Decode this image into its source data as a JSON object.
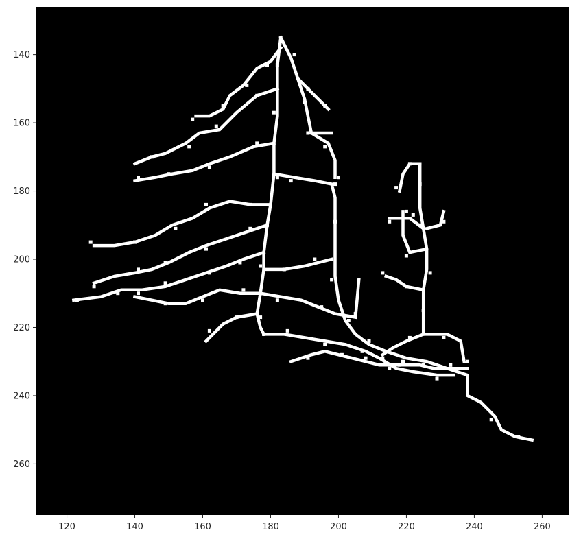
{
  "image": {
    "type": "skeleton-mask",
    "background_color": "#000000",
    "foreground_color": "#ffffff",
    "x_range": [
      111,
      268
    ],
    "y_range": [
      126,
      275
    ],
    "y_inverted": true
  },
  "x_axis": {
    "ticks": [
      {
        "value": 120,
        "label": "120"
      },
      {
        "value": 140,
        "label": "140"
      },
      {
        "value": 160,
        "label": "160"
      },
      {
        "value": 180,
        "label": "180"
      },
      {
        "value": 200,
        "label": "200"
      },
      {
        "value": 220,
        "label": "220"
      },
      {
        "value": 240,
        "label": "240"
      },
      {
        "value": 260,
        "label": "260"
      }
    ]
  },
  "y_axis": {
    "ticks": [
      {
        "value": 140,
        "label": "140"
      },
      {
        "value": 160,
        "label": "160"
      },
      {
        "value": 180,
        "label": "180"
      },
      {
        "value": 200,
        "label": "200"
      },
      {
        "value": 220,
        "label": "220"
      },
      {
        "value": 240,
        "label": "240"
      },
      {
        "value": 260,
        "label": "260"
      }
    ]
  },
  "skeleton_paths": [
    [
      [
        183,
        135
      ],
      [
        182,
        143
      ],
      [
        182,
        150
      ],
      [
        182,
        158
      ],
      [
        181,
        166
      ],
      [
        181,
        175
      ],
      [
        180,
        184
      ],
      [
        179,
        190
      ],
      [
        178,
        198
      ],
      [
        178,
        203
      ],
      [
        177,
        210
      ],
      [
        176,
        216
      ],
      [
        177,
        220
      ],
      [
        178,
        222
      ]
    ],
    [
      [
        183,
        135
      ],
      [
        186,
        141
      ],
      [
        188,
        147
      ],
      [
        190,
        153
      ],
      [
        191,
        158
      ],
      [
        192,
        163
      ],
      [
        198,
        163
      ]
    ],
    [
      [
        183,
        138
      ],
      [
        180,
        142
      ],
      [
        176,
        144
      ],
      [
        172,
        149
      ],
      [
        168,
        152
      ],
      [
        166,
        156
      ],
      [
        162,
        158
      ],
      [
        158,
        158
      ]
    ],
    [
      [
        182,
        150
      ],
      [
        176,
        152
      ],
      [
        170,
        157
      ],
      [
        165,
        162
      ],
      [
        159,
        163
      ],
      [
        155,
        166
      ],
      [
        149,
        169
      ],
      [
        145,
        170
      ],
      [
        140,
        172
      ]
    ],
    [
      [
        181,
        166
      ],
      [
        175,
        167
      ],
      [
        168,
        170
      ],
      [
        162,
        172
      ],
      [
        157,
        174
      ],
      [
        151,
        175
      ],
      [
        146,
        176
      ],
      [
        140,
        177
      ]
    ],
    [
      [
        181,
        175
      ],
      [
        187,
        176
      ],
      [
        193,
        177
      ],
      [
        198,
        178
      ],
      [
        199,
        182
      ],
      [
        199,
        190
      ],
      [
        199,
        198
      ],
      [
        199,
        205
      ],
      [
        200,
        212
      ],
      [
        202,
        218
      ],
      [
        205,
        222
      ],
      [
        209,
        225
      ],
      [
        214,
        227
      ],
      [
        220,
        229
      ],
      [
        226,
        230
      ],
      [
        232,
        232
      ],
      [
        238,
        234
      ],
      [
        238,
        240
      ],
      [
        242,
        242
      ],
      [
        246,
        246
      ],
      [
        248,
        250
      ],
      [
        252,
        252
      ],
      [
        257,
        253
      ]
    ],
    [
      [
        180,
        184
      ],
      [
        174,
        184
      ],
      [
        168,
        183
      ],
      [
        162,
        185
      ],
      [
        157,
        188
      ],
      [
        151,
        190
      ],
      [
        146,
        193
      ],
      [
        140,
        195
      ],
      [
        134,
        196
      ],
      [
        128,
        196
      ]
    ],
    [
      [
        179,
        190
      ],
      [
        173,
        192
      ],
      [
        167,
        194
      ],
      [
        161,
        196
      ],
      [
        156,
        198
      ],
      [
        150,
        201
      ],
      [
        145,
        203
      ],
      [
        140,
        204
      ],
      [
        134,
        205
      ],
      [
        128,
        207
      ]
    ],
    [
      [
        178,
        198
      ],
      [
        172,
        200
      ],
      [
        167,
        202
      ],
      [
        161,
        204
      ],
      [
        155,
        206
      ],
      [
        149,
        208
      ],
      [
        142,
        209
      ],
      [
        136,
        209
      ],
      [
        130,
        211
      ],
      [
        122,
        212
      ]
    ],
    [
      [
        178,
        203
      ],
      [
        184,
        203
      ],
      [
        190,
        202
      ],
      [
        194,
        201
      ],
      [
        198,
        200
      ]
    ],
    [
      [
        177,
        210
      ],
      [
        171,
        210
      ],
      [
        165,
        209
      ],
      [
        160,
        211
      ],
      [
        155,
        213
      ],
      [
        150,
        213
      ],
      [
        145,
        212
      ],
      [
        140,
        211
      ]
    ],
    [
      [
        177,
        210
      ],
      [
        183,
        211
      ],
      [
        189,
        212
      ],
      [
        194,
        214
      ],
      [
        199,
        216
      ],
      [
        205,
        217
      ],
      [
        206,
        206
      ]
    ],
    [
      [
        176,
        216
      ],
      [
        170,
        217
      ],
      [
        166,
        219
      ],
      [
        163,
        222
      ],
      [
        161,
        224
      ]
    ],
    [
      [
        178,
        222
      ],
      [
        184,
        222
      ],
      [
        190,
        223
      ],
      [
        196,
        224
      ],
      [
        202,
        225
      ],
      [
        208,
        227
      ],
      [
        212,
        229
      ],
      [
        217,
        232
      ],
      [
        222,
        233
      ],
      [
        229,
        234
      ],
      [
        234,
        234
      ]
    ],
    [
      [
        186,
        230
      ],
      [
        192,
        228
      ],
      [
        196,
        227
      ],
      [
        200,
        228
      ],
      [
        204,
        229
      ],
      [
        208,
        230
      ],
      [
        212,
        231
      ],
      [
        216,
        231
      ],
      [
        220,
        231
      ],
      [
        224,
        231
      ],
      [
        228,
        232
      ],
      [
        233,
        232
      ],
      [
        238,
        232
      ]
    ],
    [
      [
        224,
        172
      ],
      [
        224,
        178
      ],
      [
        224,
        185
      ],
      [
        225,
        191
      ],
      [
        226,
        197
      ],
      [
        226,
        203
      ],
      [
        225,
        209
      ],
      [
        225,
        215
      ],
      [
        225,
        222
      ]
    ],
    [
      [
        225,
        191
      ],
      [
        221,
        188
      ],
      [
        218,
        188
      ],
      [
        215,
        188
      ]
    ],
    [
      [
        226,
        197
      ],
      [
        221,
        198
      ],
      [
        219,
        193
      ],
      [
        219,
        186
      ]
    ],
    [
      [
        225,
        209
      ],
      [
        220,
        208
      ],
      [
        217,
        206
      ],
      [
        214,
        205
      ]
    ],
    [
      [
        225,
        222
      ],
      [
        220,
        224
      ],
      [
        216,
        226
      ],
      [
        213,
        228
      ]
    ],
    [
      [
        225,
        222
      ],
      [
        232,
        222
      ],
      [
        236,
        224
      ],
      [
        237,
        230
      ]
    ],
    [
      [
        224,
        172
      ],
      [
        221,
        172
      ],
      [
        219,
        175
      ],
      [
        218,
        180
      ]
    ],
    [
      [
        226,
        191
      ],
      [
        230,
        190
      ],
      [
        231,
        186
      ]
    ],
    [
      [
        192,
        163
      ],
      [
        197,
        166
      ],
      [
        199,
        171
      ],
      [
        199,
        176
      ]
    ],
    [
      [
        188,
        147
      ],
      [
        191,
        150
      ],
      [
        194,
        153
      ],
      [
        197,
        156
      ]
    ]
  ]
}
